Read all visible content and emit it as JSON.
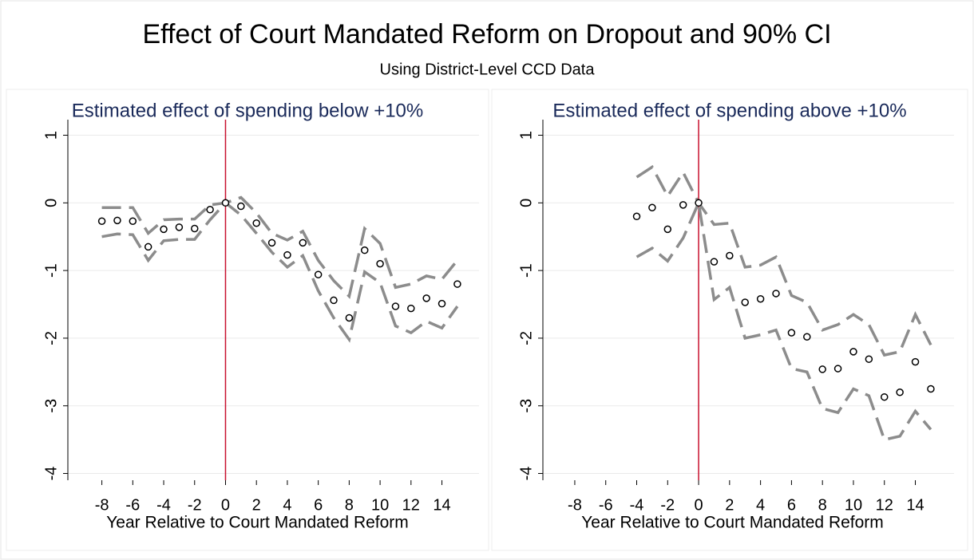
{
  "title": "Effect of Court Mandated Reform on Dropout and 90% CI",
  "subtitle": "Using District-Level CCD Data",
  "chart_data": [
    {
      "type": "scatter",
      "title": "Estimated effect of spending below +10%",
      "x_label": "Year Relative to Court Mandated Reform",
      "x": [
        -8,
        -7,
        -6,
        -5,
        -4,
        -3,
        -2,
        -1,
        0,
        1,
        2,
        3,
        4,
        5,
        6,
        7,
        8,
        9,
        10,
        11,
        12,
        13,
        14,
        15
      ],
      "values": [
        -0.27,
        -0.26,
        -0.27,
        -0.65,
        -0.39,
        -0.36,
        -0.38,
        -0.1,
        0,
        -0.05,
        -0.3,
        -0.59,
        -0.77,
        -0.59,
        -1.06,
        -1.44,
        -1.7,
        -0.7,
        -0.9,
        -1.53,
        -1.56,
        -1.41,
        -1.49,
        -1.2
      ],
      "ci_upper": [
        -0.07,
        -0.07,
        -0.07,
        -0.45,
        -0.25,
        -0.24,
        -0.24,
        -0.03,
        0,
        0.08,
        -0.15,
        -0.45,
        -0.55,
        -0.42,
        -0.85,
        -1.15,
        -1.38,
        -0.38,
        -0.6,
        -1.25,
        -1.2,
        -1.08,
        -1.13,
        -0.85
      ],
      "ci_lower": [
        -0.5,
        -0.46,
        -0.47,
        -0.85,
        -0.56,
        -0.54,
        -0.54,
        -0.25,
        0,
        -0.18,
        -0.45,
        -0.73,
        -0.95,
        -0.78,
        -1.3,
        -1.7,
        -2.02,
        -1.02,
        -1.18,
        -1.82,
        -1.92,
        -1.75,
        -1.85,
        -1.53
      ],
      "color": "#000000",
      "ci_color": "#8c8c8c",
      "vline": 0,
      "vline_color": "#c8102e",
      "xlim": [
        -10.2,
        16.4
      ],
      "ylim": [
        -4.1,
        1.23
      ],
      "xticks": [
        -8,
        -6,
        -4,
        -2,
        0,
        2,
        4,
        6,
        8,
        10,
        12,
        14
      ],
      "yticks": [
        1,
        0,
        -1,
        -2,
        -3,
        -4
      ],
      "grid": true
    },
    {
      "type": "scatter",
      "title": "Estimated effect of spending above +10%",
      "x_label": "Year Relative to Court Mandated Reform",
      "x": [
        -4,
        -3,
        -2,
        -1,
        0,
        1,
        2,
        3,
        4,
        5,
        6,
        7,
        8,
        9,
        10,
        11,
        12,
        13,
        14,
        15
      ],
      "values": [
        -0.2,
        -0.07,
        -0.39,
        -0.03,
        0,
        -0.87,
        -0.78,
        -1.47,
        -1.42,
        -1.34,
        -1.92,
        -1.98,
        -2.46,
        -2.45,
        -2.2,
        -2.31,
        -2.87,
        -2.8,
        -2.35,
        -2.75
      ],
      "ci_upper": [
        0.38,
        0.53,
        0.1,
        0.45,
        0,
        -0.32,
        -0.3,
        -0.95,
        -0.92,
        -0.8,
        -1.37,
        -1.47,
        -1.88,
        -1.8,
        -1.65,
        -1.8,
        -2.25,
        -2.2,
        -1.65,
        -2.1
      ],
      "ci_lower": [
        -0.8,
        -0.67,
        -0.86,
        -0.52,
        0,
        -1.43,
        -1.25,
        -2.0,
        -1.95,
        -1.88,
        -2.45,
        -2.5,
        -3.04,
        -3.1,
        -2.75,
        -2.85,
        -3.5,
        -3.45,
        -3.08,
        -3.35
      ],
      "color": "#000000",
      "ci_color": "#8c8c8c",
      "vline": 0,
      "vline_color": "#c8102e",
      "xlim": [
        -10.06,
        16.5
      ],
      "ylim": [
        -4.1,
        1.23
      ],
      "xticks": [
        -8,
        -6,
        -4,
        -2,
        0,
        2,
        4,
        6,
        8,
        10,
        12,
        14
      ],
      "yticks": [
        1,
        0,
        -1,
        -2,
        -3,
        -4
      ],
      "grid": true
    }
  ]
}
